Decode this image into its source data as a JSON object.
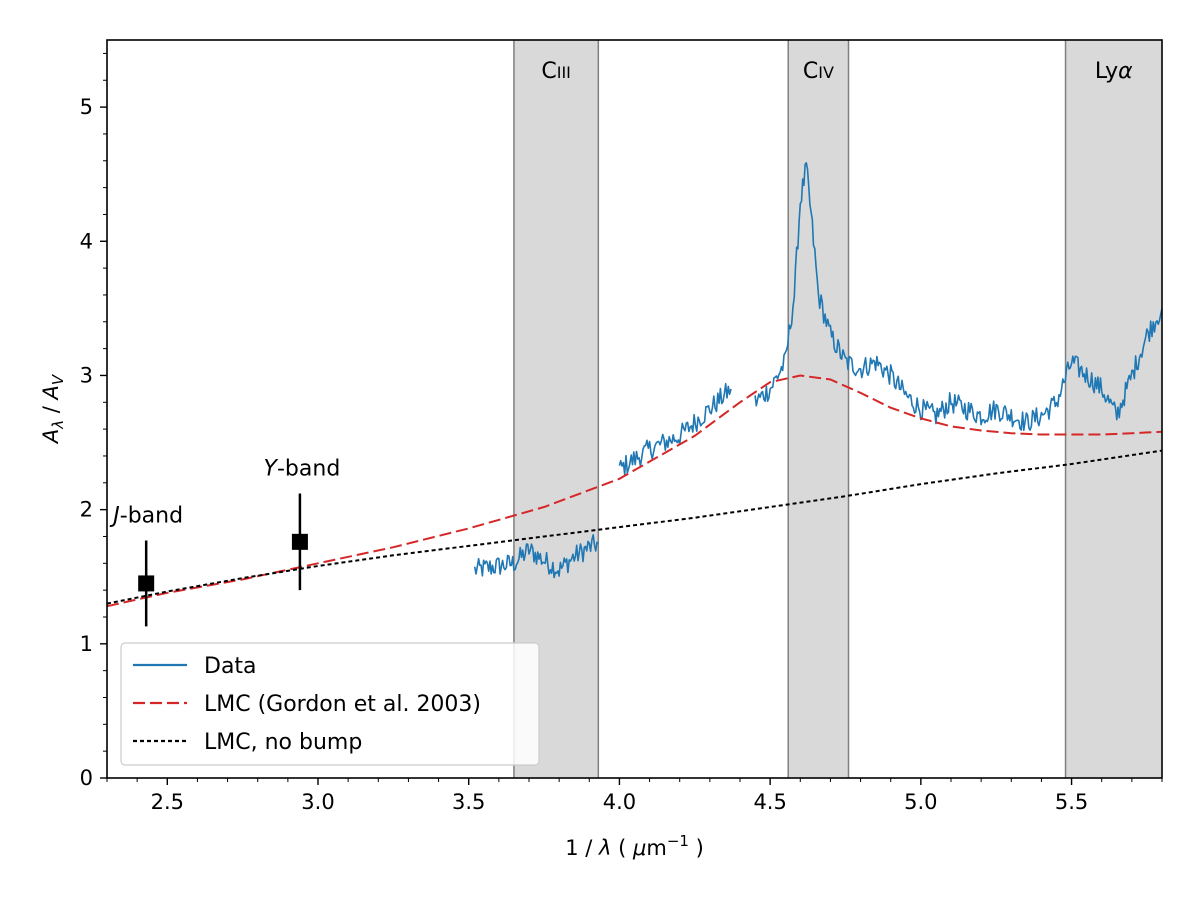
{
  "chart_data": {
    "type": "line",
    "title": "",
    "xlabel_parts": [
      "1 / ",
      "λ",
      "   ( ",
      "μ",
      "m",
      "−1",
      " )"
    ],
    "ylabel_parts": [
      "A",
      "λ",
      " / ",
      "A",
      "V"
    ],
    "xlim": [
      2.3,
      5.8
    ],
    "ylim": [
      0,
      5.5
    ],
    "xticks": [
      2.5,
      3.0,
      3.5,
      4.0,
      4.5,
      5.0,
      5.5
    ],
    "xtick_labels": [
      "2.5",
      "3.0",
      "3.5",
      "4.0",
      "4.5",
      "5.0",
      "5.5"
    ],
    "yticks": [
      0,
      1,
      2,
      3,
      4,
      5
    ],
    "ytick_labels": [
      "0",
      "1",
      "2",
      "3",
      "4",
      "5"
    ],
    "bands": [
      {
        "name": "CIII",
        "label_parts": [
          "C",
          "III"
        ],
        "x0": 3.65,
        "x1": 3.93
      },
      {
        "name": "CIV",
        "label_parts": [
          "C",
          "IV"
        ],
        "x0": 4.56,
        "x1": 4.76
      },
      {
        "name": "Lyalpha",
        "label_parts": [
          "Ly",
          "α"
        ],
        "x0": 5.48,
        "x1": 5.8
      }
    ],
    "band_fill": "#d9d9d9",
    "band_edge": "#808080",
    "photometry": [
      {
        "name": "J-band",
        "label_parts": [
          "J",
          "-band"
        ],
        "x": 2.43,
        "y": 1.45,
        "yerr": 0.32
      },
      {
        "name": "Y-band",
        "label_parts": [
          "Y",
          "-band"
        ],
        "x": 2.94,
        "y": 1.76,
        "yerr": 0.36
      }
    ],
    "series": [
      {
        "name": "Data",
        "color": "#1f77b4",
        "style": "solid",
        "noise": 0.08,
        "segments": [
          {
            "x": [
              3.52,
              3.6,
              3.65,
              3.7,
              3.75,
              3.8,
              3.85,
              3.9,
              3.93
            ],
            "y": [
              1.55,
              1.58,
              1.6,
              1.7,
              1.62,
              1.55,
              1.65,
              1.72,
              1.75
            ]
          },
          {
            "x": [
              4.0,
              4.1,
              4.2,
              4.3,
              4.37
            ],
            "y": [
              2.3,
              2.45,
              2.55,
              2.75,
              2.9
            ]
          },
          {
            "x": [
              4.45,
              4.5,
              4.55,
              4.58,
              4.6,
              4.62,
              4.64,
              4.66,
              4.7,
              4.75,
              4.8,
              4.85,
              4.9,
              4.95,
              5.0,
              5.05,
              5.1,
              5.15,
              5.2,
              5.25,
              5.3,
              5.35,
              5.4,
              5.45,
              5.5,
              5.55,
              5.6,
              5.65,
              5.7,
              5.75,
              5.8
            ],
            "y": [
              2.8,
              2.9,
              3.1,
              3.6,
              4.3,
              4.55,
              4.1,
              3.6,
              3.3,
              3.1,
              3.05,
              3.1,
              3.0,
              2.85,
              2.75,
              2.7,
              2.8,
              2.75,
              2.7,
              2.75,
              2.7,
              2.65,
              2.7,
              2.8,
              3.1,
              3.0,
              2.9,
              2.7,
              3.0,
              3.3,
              3.5
            ]
          }
        ]
      },
      {
        "name": "LMC (Gordon et al. 2003)",
        "color": "#d62728",
        "style": "dashed",
        "x": [
          2.3,
          2.5,
          2.75,
          3.0,
          3.25,
          3.5,
          3.75,
          4.0,
          4.25,
          4.4,
          4.5,
          4.6,
          4.7,
          4.8,
          4.9,
          5.0,
          5.1,
          5.2,
          5.3,
          5.4,
          5.5,
          5.6,
          5.7,
          5.8
        ],
        "y": [
          1.28,
          1.38,
          1.48,
          1.6,
          1.72,
          1.86,
          2.02,
          2.23,
          2.55,
          2.8,
          2.95,
          3.0,
          2.97,
          2.87,
          2.76,
          2.68,
          2.62,
          2.59,
          2.57,
          2.56,
          2.56,
          2.56,
          2.57,
          2.58
        ]
      },
      {
        "name": "LMC, no bump",
        "color": "#000000",
        "style": "dotted",
        "x": [
          2.3,
          2.5,
          2.75,
          3.0,
          3.25,
          3.5,
          3.75,
          4.0,
          4.25,
          4.5,
          4.75,
          5.0,
          5.25,
          5.5,
          5.8
        ],
        "y": [
          1.3,
          1.39,
          1.49,
          1.58,
          1.66,
          1.73,
          1.8,
          1.87,
          1.94,
          2.02,
          2.1,
          2.19,
          2.27,
          2.34,
          2.44
        ]
      }
    ],
    "legend_location": "lower-left"
  }
}
